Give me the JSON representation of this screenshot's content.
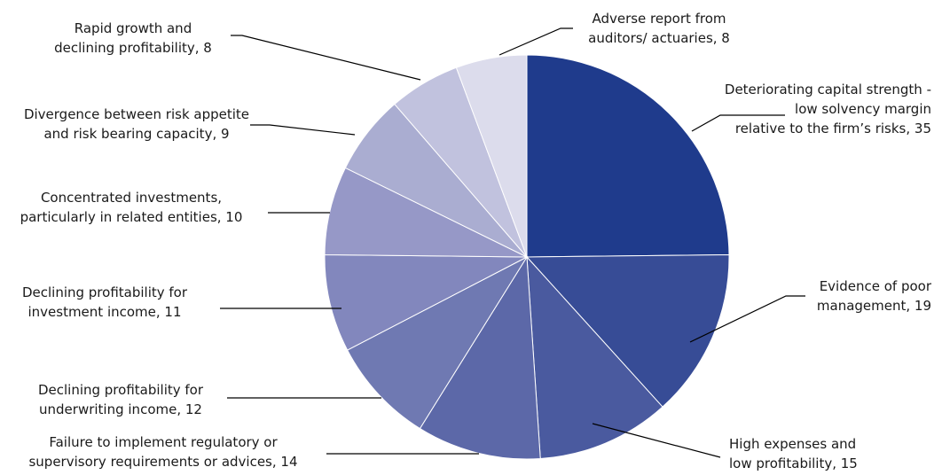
{
  "chart_data": {
    "type": "pie",
    "categories": [
      "Deteriorating capital strength - low solvency margin relative to the firm’s risks",
      "Evidence of poor management",
      "High expenses and low profitability",
      "Failure to implement regulatory or supervisory requirements or advices",
      "Declining profitability for underwriting income",
      "Declining profitability for investment income",
      "Concentrated investments, particularly in related entities",
      "Divergence between risk appetite and risk bearing capacity",
      "Rapid growth and declining profitability",
      "Adverse report from auditors/ actuaries"
    ],
    "values": [
      35,
      19,
      15,
      14,
      12,
      11,
      10,
      9,
      8,
      8
    ],
    "colors": [
      "#1f3b8c",
      "#374c96",
      "#4a5a9f",
      "#5c68a8",
      "#6f79b2",
      "#8287bd",
      "#9698c7",
      "#aaadd1",
      "#c1c2de",
      "#dcdcec"
    ],
    "labels": [
      [
        "Deteriorating capital strength -",
        "low solvency margin",
        "relative to the firm’s risks, 35"
      ],
      [
        "Evidence of poor",
        "management, 19"
      ],
      [
        "High expenses and",
        "low profitability, 15"
      ],
      [
        "Failure to implement regulatory or",
        "supervisory requirements or advices, 14"
      ],
      [
        "Declining profitability for",
        "underwriting income, 12"
      ],
      [
        "Declining profitability for",
        "investment income, 11"
      ],
      [
        "Concentrated investments,",
        "particularly in related entities, 10"
      ],
      [
        "Divergence between risk appetite",
        "and risk bearing capacity, 9"
      ],
      [
        "Rapid growth and",
        "declining profitability, 8"
      ],
      [
        "Adverse report from",
        "auditors/ actuaries, 8"
      ]
    ],
    "start_angle_deg": 0,
    "direction": "clockwise"
  }
}
